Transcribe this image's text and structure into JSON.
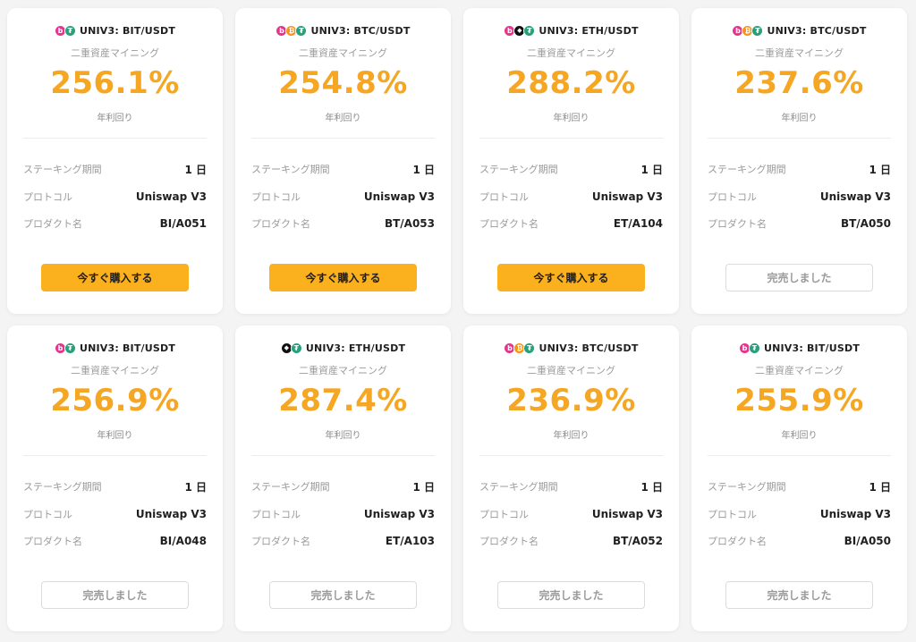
{
  "colors": {
    "accent": "#f5a623",
    "buy_button": "#fbb01d",
    "coin_bit": "#e5358f",
    "coin_btc": "#f7931a",
    "coin_eth": "#111111",
    "coin_usdt": "#26a17b"
  },
  "labels": {
    "subtitle": "二重資産マイニング",
    "apr_label": "年利回り",
    "staking_period": "ステーキング期間",
    "protocol": "プロトコル",
    "product_name": "プロダクト名",
    "buy_now": "今すぐ購入する",
    "sold_out": "完売しました"
  },
  "cards": [
    {
      "pair": "UNIV3: BIT/USDT",
      "coins": [
        {
          "icon": "bit-icon",
          "glyph": "b"
        },
        {
          "icon": "usdt-icon",
          "glyph": "₮"
        }
      ],
      "apr": "256.1%",
      "period": "1 日",
      "protocol": "Uniswap V3",
      "product": "BI/A051",
      "status": "buy"
    },
    {
      "pair": "UNIV3: BTC/USDT",
      "coins": [
        {
          "icon": "bit-icon",
          "glyph": "b"
        },
        {
          "icon": "btc-icon",
          "glyph": "₿"
        },
        {
          "icon": "usdt-icon",
          "glyph": "₮"
        }
      ],
      "apr": "254.8%",
      "period": "1 日",
      "protocol": "Uniswap V3",
      "product": "BT/A053",
      "status": "buy"
    },
    {
      "pair": "UNIV3: ETH/USDT",
      "coins": [
        {
          "icon": "bit-icon",
          "glyph": "b"
        },
        {
          "icon": "eth-icon",
          "glyph": "◆"
        },
        {
          "icon": "usdt-icon",
          "glyph": "₮"
        }
      ],
      "apr": "288.2%",
      "period": "1 日",
      "protocol": "Uniswap V3",
      "product": "ET/A104",
      "status": "buy"
    },
    {
      "pair": "UNIV3: BTC/USDT",
      "coins": [
        {
          "icon": "bit-icon",
          "glyph": "b"
        },
        {
          "icon": "btc-icon",
          "glyph": "₿"
        },
        {
          "icon": "usdt-icon",
          "glyph": "₮"
        }
      ],
      "apr": "237.6%",
      "period": "1 日",
      "protocol": "Uniswap V3",
      "product": "BT/A050",
      "status": "sold"
    },
    {
      "pair": "UNIV3: BIT/USDT",
      "coins": [
        {
          "icon": "bit-icon",
          "glyph": "b"
        },
        {
          "icon": "usdt-icon",
          "glyph": "₮"
        }
      ],
      "apr": "256.9%",
      "period": "1 日",
      "protocol": "Uniswap V3",
      "product": "BI/A048",
      "status": "sold"
    },
    {
      "pair": "UNIV3: ETH/USDT",
      "coins": [
        {
          "icon": "eth-icon",
          "glyph": "◆"
        },
        {
          "icon": "usdt-icon",
          "glyph": "₮"
        }
      ],
      "apr": "287.4%",
      "period": "1 日",
      "protocol": "Uniswap V3",
      "product": "ET/A103",
      "status": "sold"
    },
    {
      "pair": "UNIV3: BTC/USDT",
      "coins": [
        {
          "icon": "bit-icon",
          "glyph": "b"
        },
        {
          "icon": "btc-icon",
          "glyph": "₿"
        },
        {
          "icon": "usdt-icon",
          "glyph": "₮"
        }
      ],
      "apr": "236.9%",
      "period": "1 日",
      "protocol": "Uniswap V3",
      "product": "BT/A052",
      "status": "sold"
    },
    {
      "pair": "UNIV3: BIT/USDT",
      "coins": [
        {
          "icon": "bit-icon",
          "glyph": "b"
        },
        {
          "icon": "usdt-icon",
          "glyph": "₮"
        }
      ],
      "apr": "255.9%",
      "period": "1 日",
      "protocol": "Uniswap V3",
      "product": "BI/A050",
      "status": "sold"
    }
  ]
}
